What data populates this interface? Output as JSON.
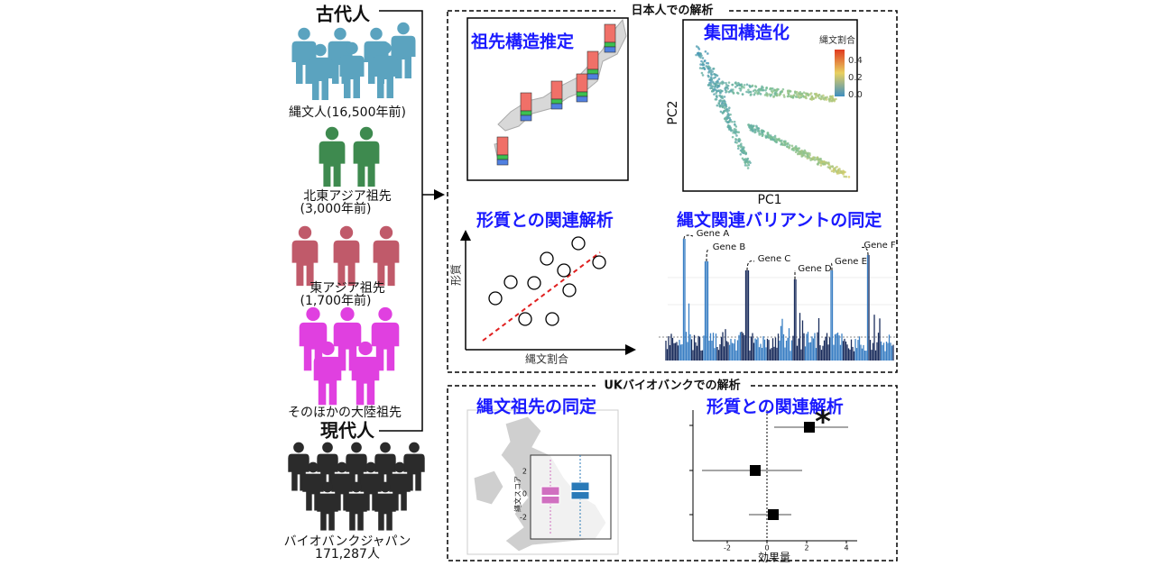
{
  "left": {
    "ancient_title": "古代人",
    "groups": [
      {
        "label": "縄文人(16,500年前)"
      },
      {
        "label": "北東アジア祖先",
        "sub": "(3,000年前)"
      },
      {
        "label": "東アジア祖先",
        "sub": "(1,700年前)"
      },
      {
        "label": "そのほかの大陸祖先"
      }
    ],
    "modern_title": "現代人",
    "modern": {
      "label": "バイオバンクジャパン",
      "sub": "171,287人"
    }
  },
  "japan_analysis": {
    "title": "日本人での解析",
    "panels": [
      {
        "title": "祖先構造推定"
      },
      {
        "title": "集団構造化",
        "legend_title": "縄文割合",
        "legend_ticks": [
          "0.4",
          "0.2",
          "0.0"
        ],
        "x_label": "PC1",
        "y_label": "PC2"
      },
      {
        "title": "形質との関連解析",
        "x_label": "縄文割合",
        "y_label": "形質"
      },
      {
        "title": "縄文関連バリアントの同定",
        "genes": [
          "Gene A",
          "Gene B",
          "Gene C",
          "Gene D",
          "Gene E",
          "Gene F"
        ]
      }
    ]
  },
  "uk_analysis": {
    "title": "UKバイオバンクでの解析",
    "panels": [
      {
        "title": "縄文祖先の同定",
        "y_label": "縄文スコア",
        "y_ticks": [
          "2",
          "0",
          "-2"
        ]
      },
      {
        "title": "形質との関連解析",
        "x_label": "効果量",
        "x_ticks": [
          "-2",
          "0",
          "2",
          "4"
        ],
        "annotation": "*"
      }
    ]
  }
}
